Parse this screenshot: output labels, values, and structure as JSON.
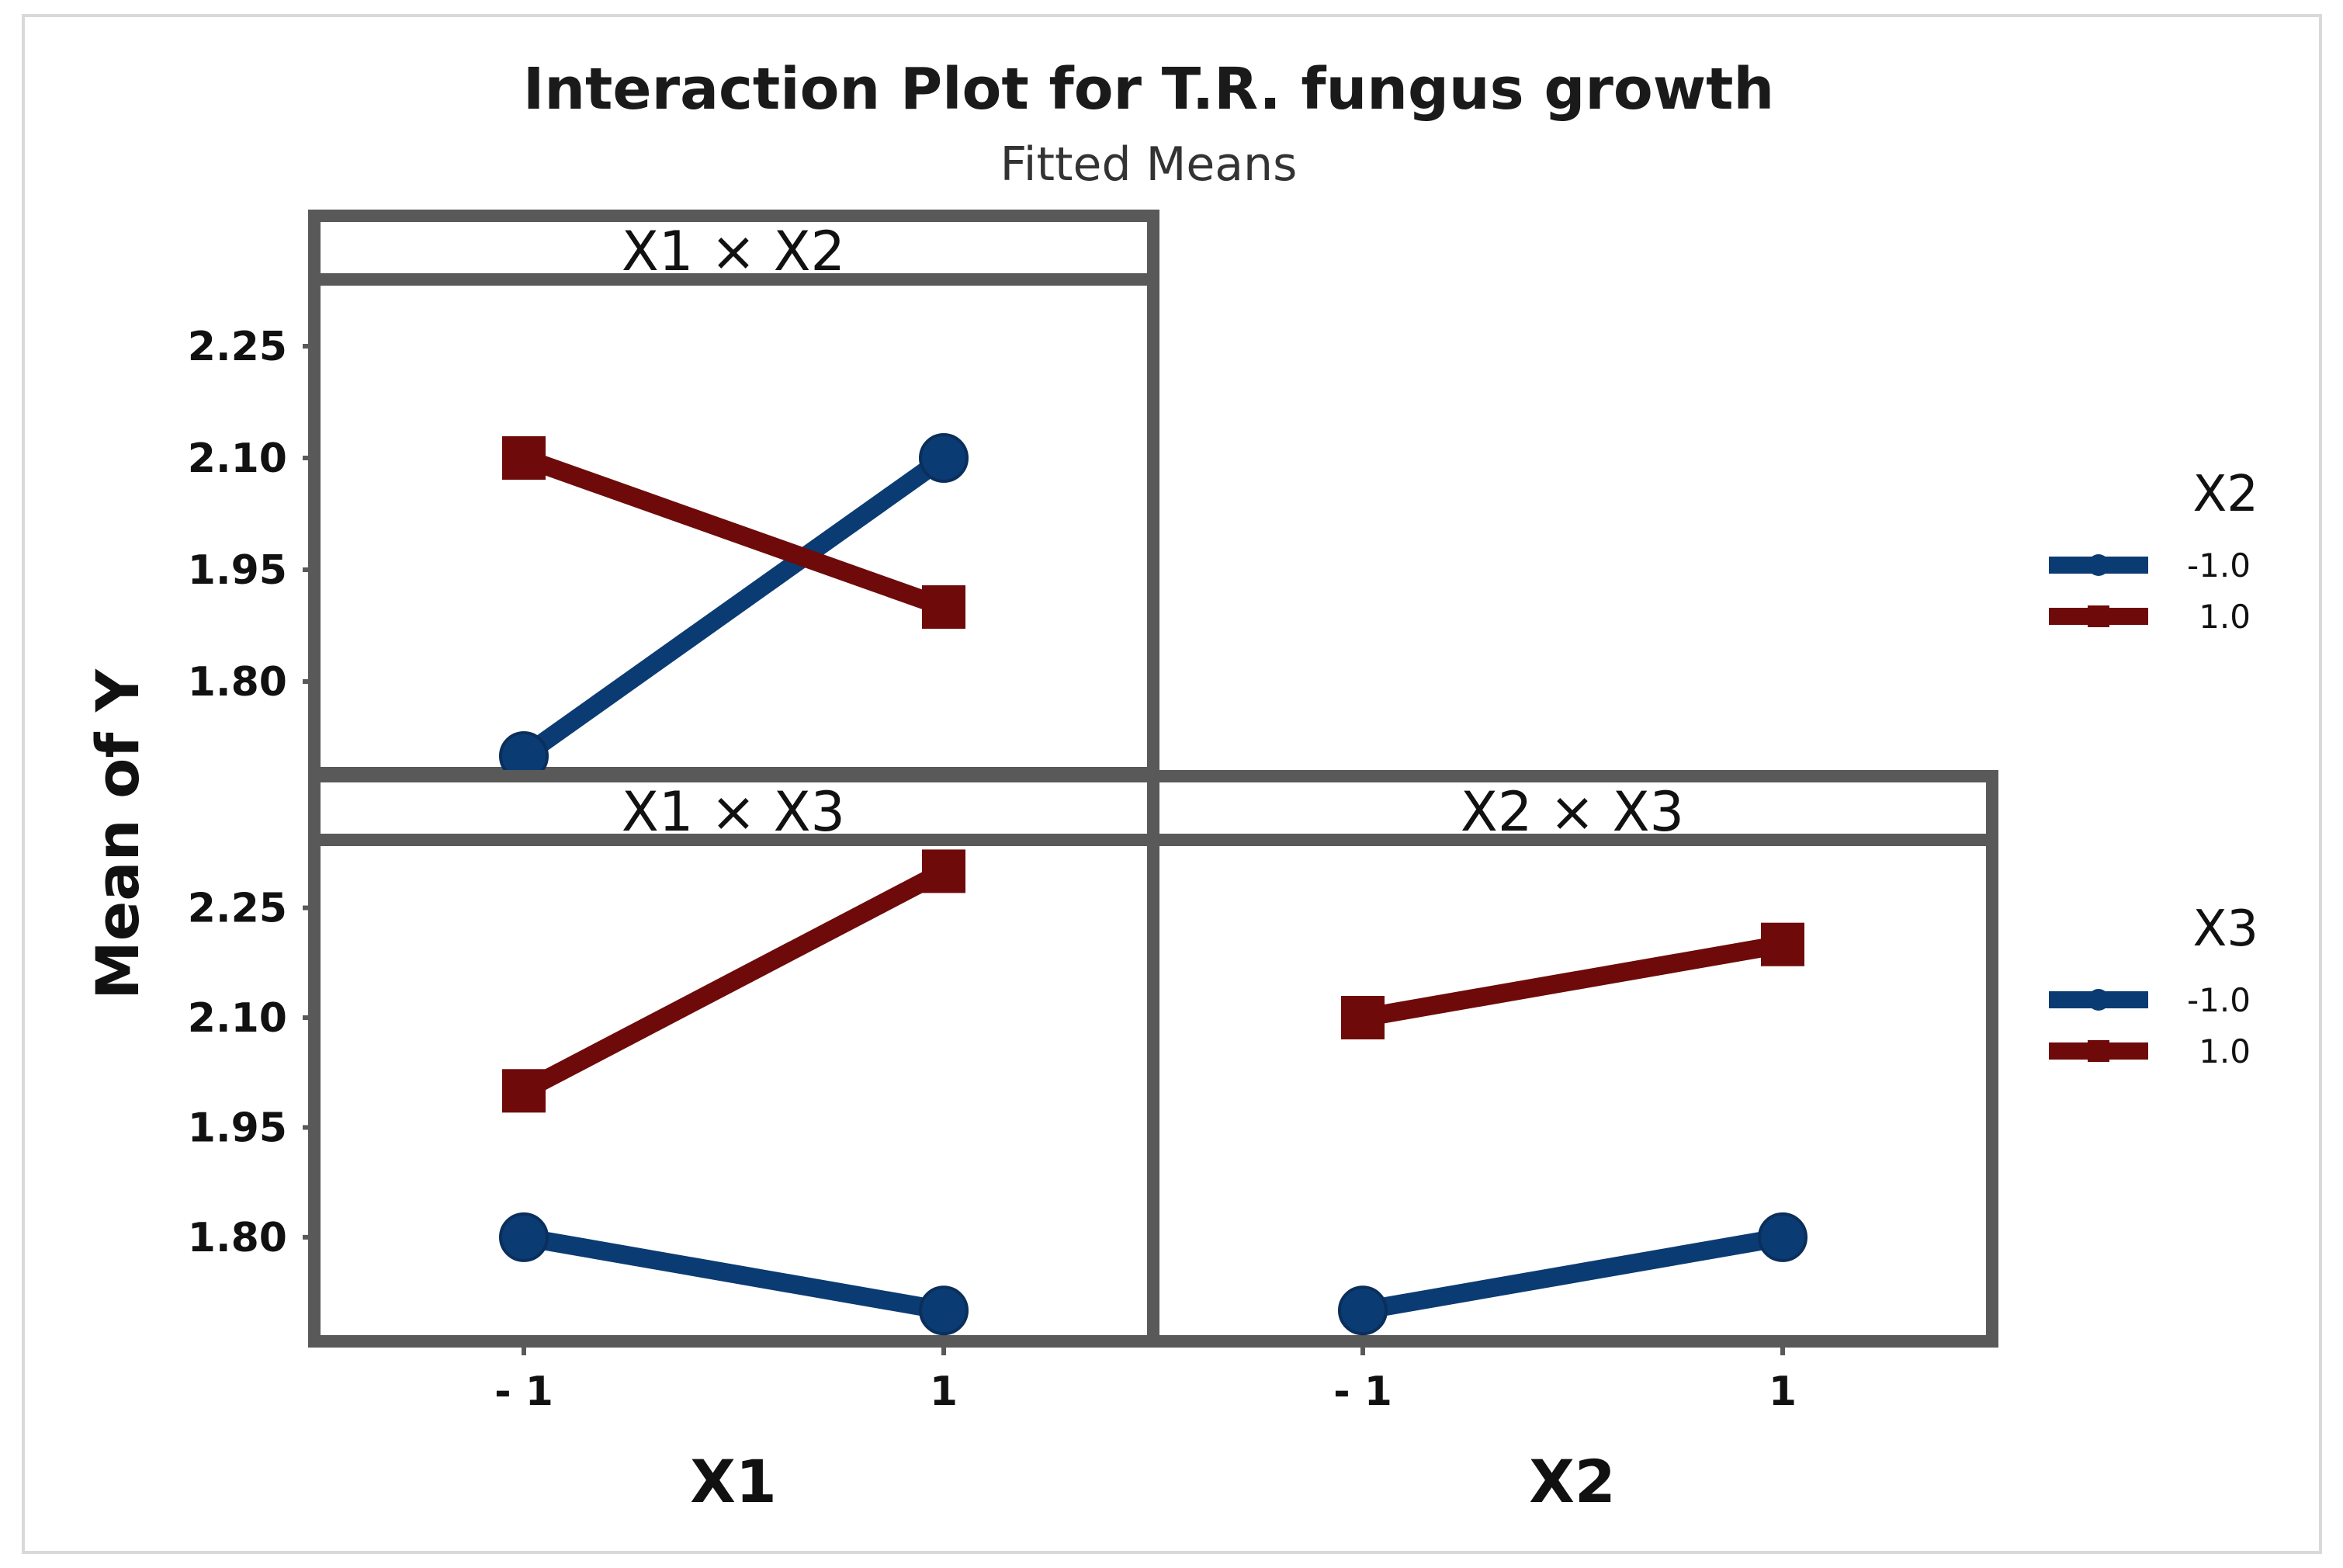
{
  "chart_data": {
    "type": "line",
    "title": "Interaction Plot for T.R. fungus growth",
    "subtitle": "Fitted Means",
    "ylabel": "Mean of Y",
    "ylim": [
      1.69,
      2.33
    ],
    "yticks": [
      "1.80",
      "1.95",
      "2.10",
      "2.25"
    ],
    "xticks": [
      "- 1",
      "1"
    ],
    "colors": {
      "low": "#0b3b73",
      "high": "#6e0a0a"
    },
    "legends": [
      {
        "title": "X2",
        "entries": [
          "-1.0",
          "1.0"
        ]
      },
      {
        "title": "X3",
        "entries": [
          "-1.0",
          "1.0"
        ]
      }
    ],
    "panels": [
      {
        "label": "X1 × X2",
        "xlabel": "",
        "x": [
          -1,
          1
        ],
        "series": [
          {
            "name": "-1.0",
            "values": [
              1.7,
              2.1
            ]
          },
          {
            "name": "1.0",
            "values": [
              2.1,
              1.9
            ]
          }
        ]
      },
      {
        "label": "X1 × X3",
        "xlabel": "X1",
        "x": [
          -1,
          1
        ],
        "series": [
          {
            "name": "-1.0",
            "values": [
              1.8,
              1.7
            ]
          },
          {
            "name": "1.0",
            "values": [
              2.0,
              2.3
            ]
          }
        ]
      },
      {
        "label": "X2 × X3",
        "xlabel": "X2",
        "x": [
          -1,
          1
        ],
        "series": [
          {
            "name": "-1.0",
            "values": [
              1.7,
              1.8
            ]
          },
          {
            "name": "1.0",
            "values": [
              2.1,
              2.2
            ]
          }
        ]
      }
    ]
  }
}
